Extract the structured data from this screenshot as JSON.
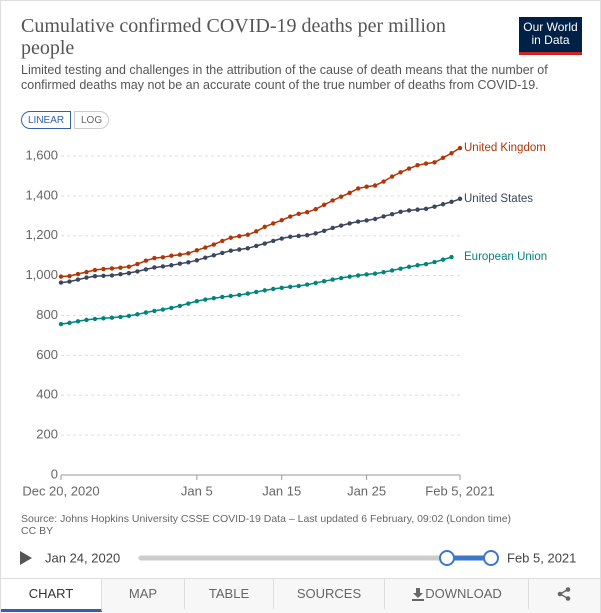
{
  "header": {
    "title": "Cumulative confirmed COVID-19 deaths per million people",
    "subtitle": "Limited testing and challenges in the attribution of the cause of death means that the number of confirmed deaths may not be an accurate count of the true number of deaths from COVID-19.",
    "logo": [
      "Our World",
      "in Data"
    ]
  },
  "controls": {
    "linear": "LINEAR",
    "log": "LOG"
  },
  "source": [
    "Source: Johns Hopkins University CSSE COVID-19 Data – Last updated 6 February, 09:02 (London time)",
    "CC BY"
  ],
  "timeline": {
    "start": "Jan 24, 2020",
    "end": "Feb 5, 2021"
  },
  "tabs": [
    "CHART",
    "MAP",
    "TABLE",
    "SOURCES",
    "DOWNLOAD"
  ],
  "chart_data": {
    "type": "line",
    "x": [
      "2020-12-20",
      "2020-12-21",
      "2020-12-22",
      "2020-12-23",
      "2020-12-24",
      "2020-12-25",
      "2020-12-26",
      "2020-12-27",
      "2020-12-28",
      "2020-12-29",
      "2020-12-30",
      "2020-12-31",
      "2021-01-01",
      "2021-01-02",
      "2021-01-03",
      "2021-01-04",
      "2021-01-05",
      "2021-01-06",
      "2021-01-07",
      "2021-01-08",
      "2021-01-09",
      "2021-01-10",
      "2021-01-11",
      "2021-01-12",
      "2021-01-13",
      "2021-01-14",
      "2021-01-15",
      "2021-01-16",
      "2021-01-17",
      "2021-01-18",
      "2021-01-19",
      "2021-01-20",
      "2021-01-21",
      "2021-01-22",
      "2021-01-23",
      "2021-01-24",
      "2021-01-25",
      "2021-01-26",
      "2021-01-27",
      "2021-01-28",
      "2021-01-29",
      "2021-01-30",
      "2021-01-31",
      "2021-02-01",
      "2021-02-02",
      "2021-02-03",
      "2021-02-04",
      "2021-02-05"
    ],
    "series": [
      {
        "name": "United Kingdom",
        "color": "#b13507",
        "values": [
          995,
          998,
          1008,
          1018,
          1028,
          1033,
          1036,
          1040,
          1045,
          1058,
          1075,
          1088,
          1092,
          1100,
          1105,
          1112,
          1127,
          1141,
          1156,
          1174,
          1190,
          1198,
          1205,
          1222,
          1245,
          1262,
          1278,
          1296,
          1310,
          1318,
          1333,
          1355,
          1377,
          1396,
          1415,
          1437,
          1446,
          1452,
          1472,
          1497,
          1518,
          1537,
          1554,
          1562,
          1568,
          1591,
          1614,
          1640
        ]
      },
      {
        "name": "United States",
        "color": "#3b4560",
        "values": [
          965,
          970,
          980,
          990,
          997,
          999,
          1001,
          1007,
          1013,
          1021,
          1031,
          1041,
          1046,
          1052,
          1060,
          1067,
          1077,
          1090,
          1102,
          1114,
          1125,
          1131,
          1137,
          1149,
          1161,
          1174,
          1186,
          1195,
          1199,
          1203,
          1212,
          1225,
          1239,
          1251,
          1262,
          1271,
          1277,
          1284,
          1297,
          1308,
          1320,
          1327,
          1331,
          1335,
          1346,
          1358,
          1370,
          1385
        ]
      },
      {
        "name": "European Union",
        "color": "#00847e",
        "values": [
          757,
          763,
          771,
          778,
          783,
          786,
          789,
          793,
          798,
          806,
          815,
          823,
          830,
          838,
          848,
          860,
          872,
          880,
          887,
          893,
          898,
          903,
          910,
          918,
          926,
          933,
          939,
          944,
          948,
          955,
          963,
          972,
          980,
          988,
          995,
          1001,
          1006,
          1010,
          1017,
          1026,
          1035,
          1044,
          1052,
          1058,
          1068,
          1080,
          1093,
          null
        ]
      }
    ],
    "xlim": [
      "2020-12-20",
      "2021-02-05"
    ],
    "xticks": [
      {
        "value": "2020-12-20",
        "label": "Dec 20, 2020"
      },
      {
        "value": "2021-01-05",
        "label": "Jan 5"
      },
      {
        "value": "2021-01-15",
        "label": "Jan 15"
      },
      {
        "value": "2021-01-25",
        "label": "Jan 25"
      },
      {
        "value": "2021-02-05",
        "label": "Feb 5, 2021"
      }
    ],
    "ylim": [
      0,
      1600
    ],
    "yticks": [
      0,
      200,
      400,
      600,
      800,
      {
        "value": 1000,
        "label": "1,000"
      },
      {
        "value": 1200,
        "label": "1,200"
      },
      {
        "value": 1400,
        "label": "1,400"
      },
      {
        "value": 1600,
        "label": "1,600"
      }
    ],
    "grid": true
  }
}
